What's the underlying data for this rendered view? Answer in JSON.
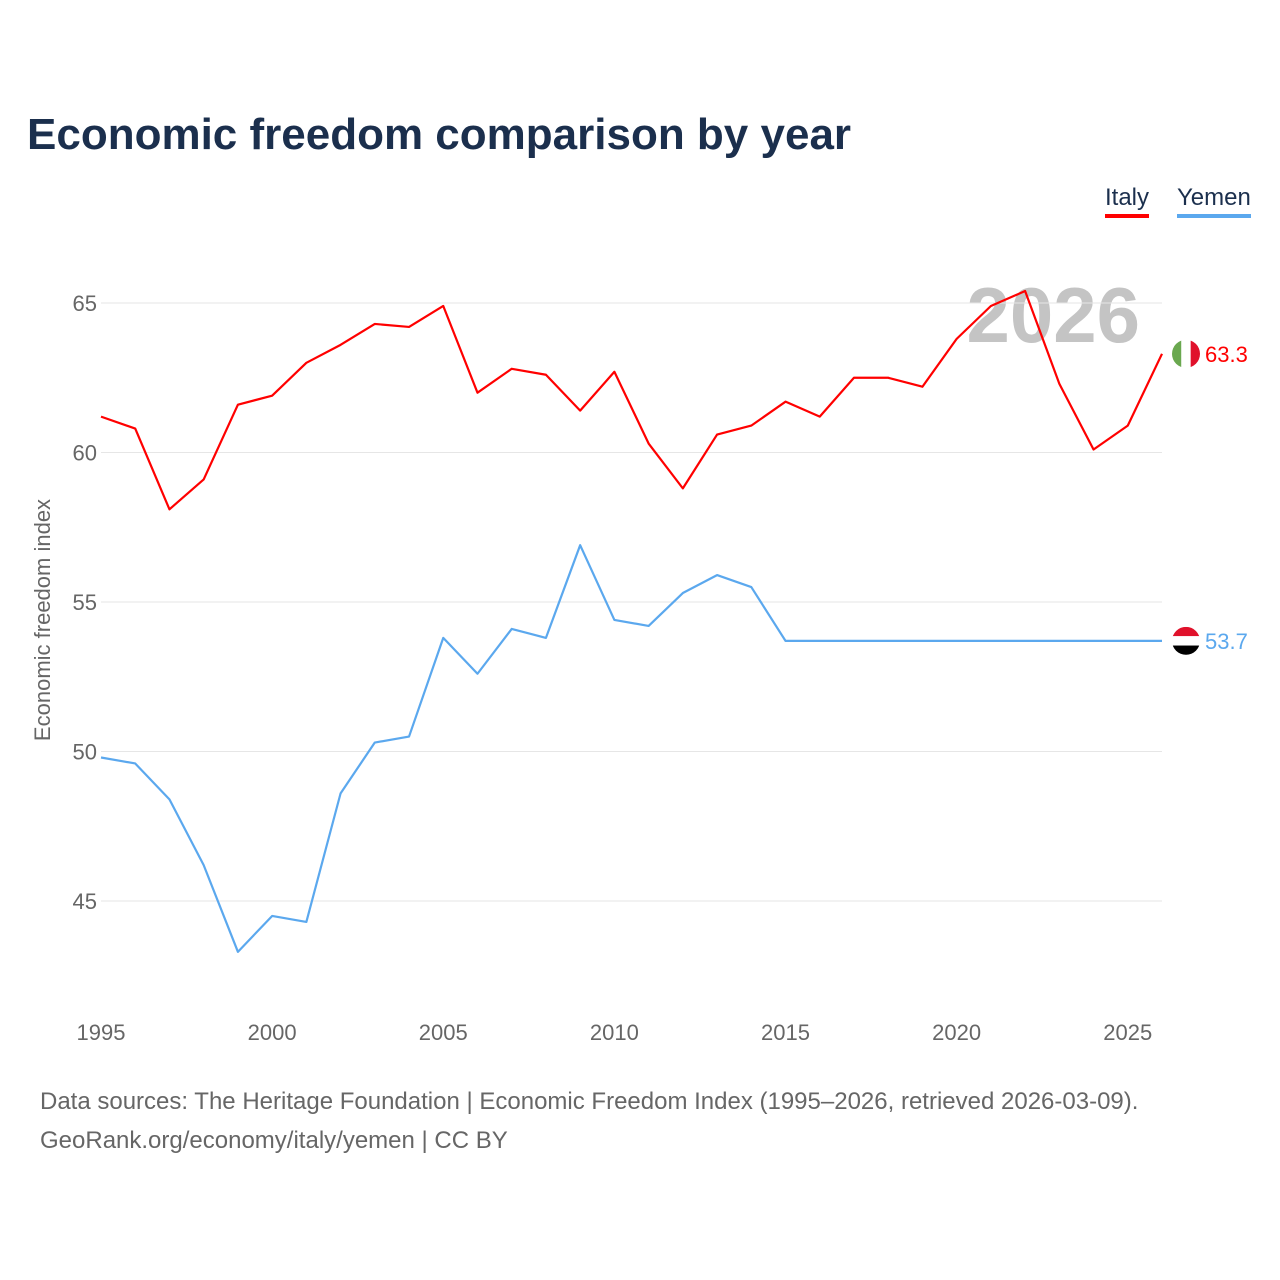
{
  "title": "Economic freedom comparison by year",
  "watermark_year": "2026",
  "footer": {
    "line1": "Data sources: The Heritage Foundation | Economic Freedom Index (1995–2026, retrieved 2026-03-09).",
    "line2": "GeoRank.org/economy/italy/yemen | CC BY"
  },
  "chart_data": {
    "type": "line",
    "title": "Economic freedom comparison by year",
    "xlabel": "",
    "ylabel": "Economic freedom index",
    "xlim": [
      1995,
      2026
    ],
    "ylim": [
      42,
      67
    ],
    "xticks": [
      "1995",
      "2000",
      "2005",
      "2010",
      "2015",
      "2020",
      "2025"
    ],
    "yticks": [
      "45",
      "50",
      "55",
      "60",
      "65"
    ],
    "grid": true,
    "legend_placement": "top-right",
    "x": [
      1995,
      1996,
      1997,
      1998,
      1999,
      2000,
      2001,
      2002,
      2003,
      2004,
      2005,
      2006,
      2007,
      2008,
      2009,
      2010,
      2011,
      2012,
      2013,
      2014,
      2015,
      2016,
      2017,
      2018,
      2019,
      2020,
      2021,
      2022,
      2023,
      2024,
      2025,
      2026
    ],
    "series": [
      {
        "name": "Italy",
        "color": "#ff0000",
        "end_label": "63.3",
        "values": [
          61.2,
          60.8,
          58.1,
          59.1,
          61.6,
          61.9,
          63.0,
          63.6,
          64.3,
          64.2,
          64.9,
          62.0,
          62.8,
          62.6,
          61.4,
          62.7,
          60.3,
          58.8,
          60.6,
          60.9,
          61.7,
          61.2,
          62.5,
          62.5,
          62.2,
          63.8,
          64.9,
          65.4,
          62.3,
          60.1,
          60.9,
          63.3
        ]
      },
      {
        "name": "Yemen",
        "color": "#5ba8ee",
        "end_label": "53.7",
        "values": [
          49.8,
          49.6,
          48.4,
          46.2,
          43.3,
          44.5,
          44.3,
          48.6,
          50.3,
          50.5,
          53.8,
          52.6,
          54.1,
          53.8,
          56.9,
          54.4,
          54.2,
          55.3,
          55.9,
          55.5,
          53.7,
          53.7,
          53.7,
          53.7,
          53.7,
          53.7,
          53.7,
          53.7,
          53.7,
          53.7,
          53.7,
          53.7
        ]
      }
    ]
  }
}
